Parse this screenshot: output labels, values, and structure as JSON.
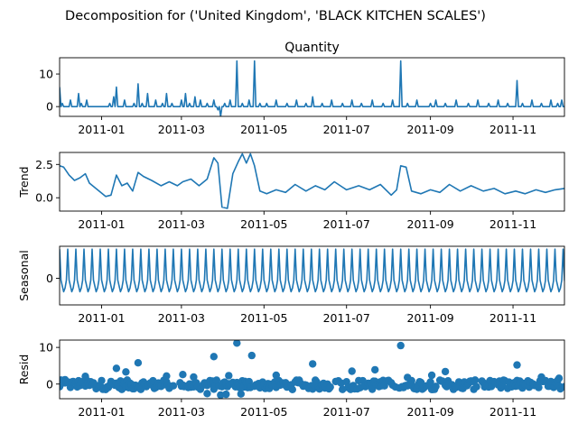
{
  "chart_data": {
    "type": "line",
    "suptitle": "Decomposition for ('United Kingdom', 'BLACK KITCHEN SCALES')",
    "x_range": [
      "2010-12-01",
      "2011-12-09"
    ],
    "x_ticks": [
      "2011-01",
      "2011-03",
      "2011-05",
      "2011-07",
      "2011-09",
      "2011-11"
    ],
    "panels": [
      {
        "key": "observed",
        "title": "Quantity",
        "ylabel": "",
        "ylim": [
          -3,
          15
        ],
        "yticks": [
          0,
          10
        ],
        "kind": "line",
        "baseline": 0,
        "points": [
          [
            "2010-12-01",
            6
          ],
          [
            "2010-12-03",
            1
          ],
          [
            "2010-12-05",
            0
          ],
          [
            "2010-12-09",
            2
          ],
          [
            "2010-12-12",
            0
          ],
          [
            "2010-12-15",
            4
          ],
          [
            "2010-12-17",
            1
          ],
          [
            "2010-12-21",
            2
          ],
          [
            "2011-01-07",
            1
          ],
          [
            "2011-01-10",
            3
          ],
          [
            "2011-01-12",
            6
          ],
          [
            "2011-01-18",
            2
          ],
          [
            "2011-01-25",
            1
          ],
          [
            "2011-01-28",
            7
          ],
          [
            "2011-01-31",
            1
          ],
          [
            "2011-02-04",
            4
          ],
          [
            "2011-02-10",
            2
          ],
          [
            "2011-02-15",
            1
          ],
          [
            "2011-02-18",
            4
          ],
          [
            "2011-02-22",
            1
          ],
          [
            "2011-03-01",
            2
          ],
          [
            "2011-03-04",
            4
          ],
          [
            "2011-03-07",
            1
          ],
          [
            "2011-03-11",
            3
          ],
          [
            "2011-03-15",
            2
          ],
          [
            "2011-03-20",
            1
          ],
          [
            "2011-03-25",
            2
          ],
          [
            "2011-03-28",
            -1
          ],
          [
            "2011-03-30",
            -3
          ],
          [
            "2011-04-02",
            1
          ],
          [
            "2011-04-06",
            2
          ],
          [
            "2011-04-11",
            14
          ],
          [
            "2011-04-15",
            1
          ],
          [
            "2011-04-20",
            2
          ],
          [
            "2011-04-24",
            14
          ],
          [
            "2011-04-28",
            1
          ],
          [
            "2011-05-03",
            1
          ],
          [
            "2011-05-10",
            2
          ],
          [
            "2011-05-18",
            1
          ],
          [
            "2011-05-25",
            2
          ],
          [
            "2011-06-01",
            1
          ],
          [
            "2011-06-06",
            3
          ],
          [
            "2011-06-13",
            1
          ],
          [
            "2011-06-20",
            2
          ],
          [
            "2011-06-28",
            1
          ],
          [
            "2011-07-05",
            2
          ],
          [
            "2011-07-12",
            1
          ],
          [
            "2011-07-20",
            2
          ],
          [
            "2011-07-28",
            1
          ],
          [
            "2011-08-04",
            2
          ],
          [
            "2011-08-10",
            14
          ],
          [
            "2011-08-15",
            1
          ],
          [
            "2011-08-22",
            2
          ],
          [
            "2011-09-01",
            1
          ],
          [
            "2011-09-05",
            2
          ],
          [
            "2011-09-12",
            1
          ],
          [
            "2011-09-20",
            2
          ],
          [
            "2011-09-29",
            1
          ],
          [
            "2011-10-06",
            2
          ],
          [
            "2011-10-14",
            1
          ],
          [
            "2011-10-21",
            2
          ],
          [
            "2011-10-28",
            1
          ],
          [
            "2011-11-04",
            8
          ],
          [
            "2011-11-08",
            1
          ],
          [
            "2011-11-15",
            2
          ],
          [
            "2011-11-22",
            1
          ],
          [
            "2011-11-29",
            2
          ],
          [
            "2011-12-04",
            1
          ],
          [
            "2011-12-07",
            2
          ]
        ]
      },
      {
        "key": "trend",
        "title": "",
        "ylabel": "Trend",
        "ylim": [
          -1,
          3.4
        ],
        "yticks": [
          0.0,
          2.5
        ],
        "ytick_labels": [
          "0.0",
          "2.5"
        ],
        "kind": "line",
        "points": [
          [
            "2010-12-01",
            2.4
          ],
          [
            "2010-12-04",
            2.3
          ],
          [
            "2010-12-08",
            1.7
          ],
          [
            "2010-12-12",
            1.3
          ],
          [
            "2010-12-16",
            1.5
          ],
          [
            "2010-12-20",
            1.8
          ],
          [
            "2010-12-23",
            1.1
          ],
          [
            "2011-01-04",
            0.1
          ],
          [
            "2011-01-08",
            0.2
          ],
          [
            "2011-01-12",
            1.7
          ],
          [
            "2011-01-16",
            0.9
          ],
          [
            "2011-01-20",
            1.1
          ],
          [
            "2011-01-24",
            0.5
          ],
          [
            "2011-01-28",
            1.9
          ],
          [
            "2011-02-01",
            1.6
          ],
          [
            "2011-02-07",
            1.3
          ],
          [
            "2011-02-14",
            0.9
          ],
          [
            "2011-02-20",
            1.2
          ],
          [
            "2011-02-26",
            0.9
          ],
          [
            "2011-03-02",
            1.2
          ],
          [
            "2011-03-08",
            1.4
          ],
          [
            "2011-03-14",
            0.9
          ],
          [
            "2011-03-20",
            1.4
          ],
          [
            "2011-03-25",
            3.0
          ],
          [
            "2011-03-28",
            2.6
          ],
          [
            "2011-03-31",
            -0.7
          ],
          [
            "2011-04-04",
            -0.8
          ],
          [
            "2011-04-08",
            1.8
          ],
          [
            "2011-04-12",
            2.7
          ],
          [
            "2011-04-15",
            3.3
          ],
          [
            "2011-04-18",
            2.6
          ],
          [
            "2011-04-21",
            3.3
          ],
          [
            "2011-04-24",
            2.4
          ],
          [
            "2011-04-28",
            0.5
          ],
          [
            "2011-05-03",
            0.3
          ],
          [
            "2011-05-10",
            0.6
          ],
          [
            "2011-05-17",
            0.4
          ],
          [
            "2011-05-24",
            1.0
          ],
          [
            "2011-06-01",
            0.5
          ],
          [
            "2011-06-08",
            0.9
          ],
          [
            "2011-06-15",
            0.6
          ],
          [
            "2011-06-22",
            1.2
          ],
          [
            "2011-07-01",
            0.6
          ],
          [
            "2011-07-10",
            0.9
          ],
          [
            "2011-07-18",
            0.6
          ],
          [
            "2011-07-26",
            1.0
          ],
          [
            "2011-08-03",
            0.2
          ],
          [
            "2011-08-07",
            0.6
          ],
          [
            "2011-08-10",
            2.4
          ],
          [
            "2011-08-14",
            2.3
          ],
          [
            "2011-08-18",
            0.5
          ],
          [
            "2011-08-25",
            0.3
          ],
          [
            "2011-09-01",
            0.6
          ],
          [
            "2011-09-08",
            0.4
          ],
          [
            "2011-09-15",
            1.0
          ],
          [
            "2011-09-23",
            0.5
          ],
          [
            "2011-10-01",
            0.9
          ],
          [
            "2011-10-10",
            0.5
          ],
          [
            "2011-10-18",
            0.7
          ],
          [
            "2011-10-26",
            0.3
          ],
          [
            "2011-11-03",
            0.5
          ],
          [
            "2011-11-10",
            0.3
          ],
          [
            "2011-11-18",
            0.6
          ],
          [
            "2011-11-25",
            0.4
          ],
          [
            "2011-12-02",
            0.6
          ],
          [
            "2011-12-09",
            0.7
          ]
        ]
      },
      {
        "key": "seasonal",
        "title": "",
        "ylabel": "Seasonal",
        "ylim": [
          -0.75,
          0.9
        ],
        "yticks": [
          0
        ],
        "kind": "periodic-line",
        "period_days": 6,
        "pattern": [
          0.82,
          -0.05,
          -0.22,
          -0.38,
          -0.28,
          -0.06
        ]
      },
      {
        "key": "resid",
        "title": "",
        "ylabel": "Resid",
        "ylim": [
          -4,
          12
        ],
        "yticks": [
          0,
          10
        ],
        "kind": "scatter",
        "outliers": [
          [
            "2010-12-05",
            1.2
          ],
          [
            "2010-12-20",
            2.1
          ],
          [
            "2011-01-12",
            4.3
          ],
          [
            "2011-01-19",
            3.3
          ],
          [
            "2011-01-28",
            5.8
          ],
          [
            "2011-02-18",
            2.2
          ],
          [
            "2011-03-02",
            2.6
          ],
          [
            "2011-03-10",
            1.9
          ],
          [
            "2011-03-25",
            7.5
          ],
          [
            "2011-04-05",
            2.3
          ],
          [
            "2011-04-11",
            11.2
          ],
          [
            "2011-04-22",
            7.8
          ],
          [
            "2011-05-10",
            2.4
          ],
          [
            "2011-06-06",
            5.5
          ],
          [
            "2011-07-05",
            3.5
          ],
          [
            "2011-07-22",
            3.9
          ],
          [
            "2011-08-10",
            10.5
          ],
          [
            "2011-08-15",
            1.8
          ],
          [
            "2011-09-02",
            2.4
          ],
          [
            "2011-09-12",
            3.4
          ],
          [
            "2011-11-04",
            5.2
          ],
          [
            "2011-11-22",
            1.9
          ],
          [
            "2011-12-05",
            1.6
          ],
          [
            "2011-03-30",
            -3.0
          ],
          [
            "2011-04-03",
            -2.8
          ],
          [
            "2011-03-20",
            -2.6
          ],
          [
            "2011-04-14",
            -2.7
          ]
        ]
      }
    ]
  }
}
